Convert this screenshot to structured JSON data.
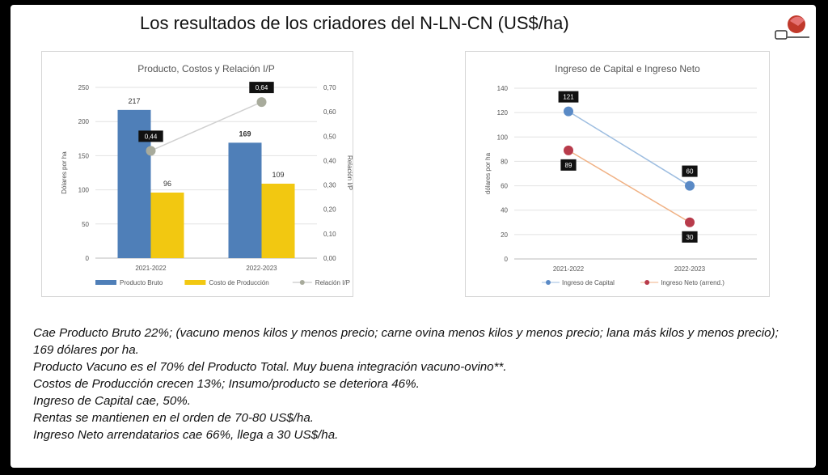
{
  "slide": {
    "title": "Los resultados de los criadores del N-LN-CN (US$/ha)",
    "notes": [
      "Cae Producto Bruto 22%; (vacuno menos kilos y menos precio; carne ovina menos kilos y menos precio; lana más kilos y menos precio); 169 dólares por ha.",
      "Producto Vacuno es el 70% del Producto Total. Muy buena integración vacuno-ovino**.",
      "Costos de Producción crecen 13%; Insumo/producto se deteriora 46%.",
      "Ingreso de Capital cae, 50%.",
      "Rentas se mantienen en el orden de 70-80 US$/ha.",
      "Ingreso Neto arrendatarios cae 66%, llega a 30 US$/ha."
    ]
  },
  "chart_data": [
    {
      "type": "bar",
      "title": "Producto, Costos y Relación I/P",
      "categories": [
        "2021-2022",
        "2022-2023"
      ],
      "ylabel": "Dólares por ha",
      "y2label": "Relación I/P",
      "ylim": [
        0,
        250
      ],
      "yticks": [
        "0",
        "50",
        "100",
        "150",
        "200",
        "250"
      ],
      "y2lim": [
        0,
        0.7
      ],
      "y2ticks": [
        "0,00",
        "0,10",
        "0,20",
        "0,30",
        "0,40",
        "0,50",
        "0,60",
        "0,70"
      ],
      "grid": true,
      "legend": "bottom",
      "series": [
        {
          "name": "Producto Bruto",
          "kind": "bar",
          "color": "#4f7fb8",
          "values": [
            217,
            169
          ],
          "labels": [
            "217",
            "169"
          ]
        },
        {
          "name": "Costo de Producción",
          "kind": "bar",
          "color": "#f2c811",
          "values": [
            96,
            109
          ],
          "labels": [
            "96",
            "109"
          ]
        },
        {
          "name": "Relación I/P",
          "kind": "line",
          "axis": "secondary",
          "color": "#a8ab9c",
          "values": [
            0.44,
            0.64
          ],
          "labels": [
            "0,44",
            "0,64"
          ]
        }
      ]
    },
    {
      "type": "line",
      "title": "Ingreso de Capital e Ingreso Neto",
      "categories": [
        "2021-2022",
        "2022-2023"
      ],
      "ylabel": "dólares por ha",
      "ylim": [
        0,
        140
      ],
      "yticks": [
        "0",
        "20",
        "40",
        "60",
        "80",
        "100",
        "120",
        "140"
      ],
      "grid": true,
      "legend": "bottom",
      "series": [
        {
          "name": "Ingreso de Capital",
          "color": "#5a8ac6",
          "line_color": "#9dbde0",
          "values": [
            121,
            60
          ],
          "labels": [
            "121",
            "60"
          ]
        },
        {
          "name": "Ingreso Neto (arrend.)",
          "color": "#b83b4b",
          "line_color": "#f0b184",
          "values": [
            89,
            30
          ],
          "labels": [
            "89",
            "30"
          ]
        }
      ]
    }
  ]
}
